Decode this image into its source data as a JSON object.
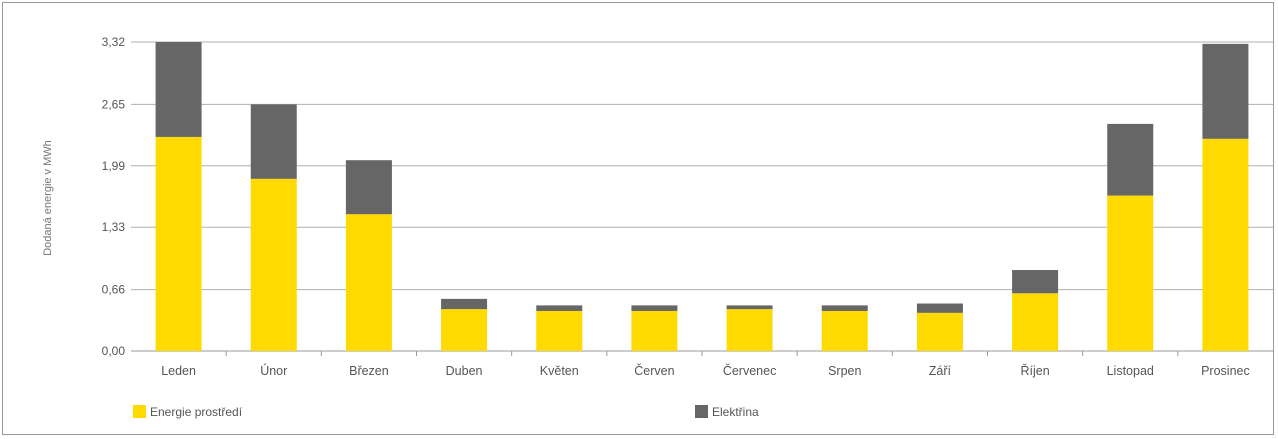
{
  "chart_data": {
    "type": "bar",
    "stacked": true,
    "title": "",
    "xlabel": "",
    "ylabel": "Dodaná energie v MWh",
    "ylim": [
      0,
      3.32
    ],
    "yticks": [
      "0,00",
      "0,66",
      "1,33",
      "1,99",
      "2,65",
      "3,32"
    ],
    "ytick_values": [
      0,
      0.66,
      1.33,
      1.99,
      2.65,
      3.32
    ],
    "grid": true,
    "legend_position": "bottom",
    "categories": [
      "Leden",
      "Únor",
      "Březen",
      "Duben",
      "Květen",
      "Červen",
      "Červenec",
      "Srpen",
      "Září",
      "Říjen",
      "Listopad",
      "Prosinec"
    ],
    "series": [
      {
        "name": "Energie prostředí",
        "color": "#FFDA00",
        "values": [
          2.3,
          1.85,
          1.47,
          0.45,
          0.43,
          0.43,
          0.45,
          0.43,
          0.41,
          0.62,
          1.67,
          2.28
        ]
      },
      {
        "name": "Elektřina",
        "color": "#666666",
        "values": [
          1.02,
          0.8,
          0.58,
          0.11,
          0.06,
          0.06,
          0.04,
          0.06,
          0.1,
          0.25,
          0.77,
          1.02
        ]
      }
    ]
  }
}
